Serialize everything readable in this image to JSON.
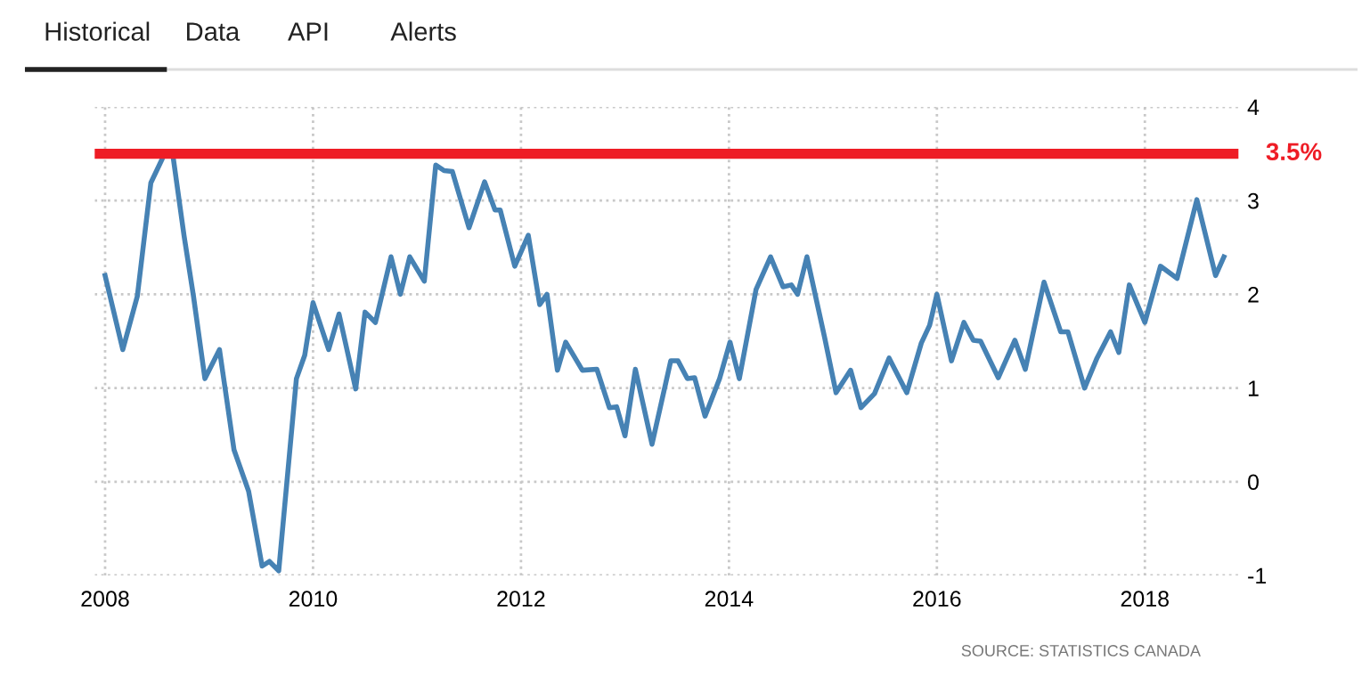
{
  "chart_data": {
    "type": "line",
    "x": [
      2008.0,
      2008.17,
      2008.31,
      2008.44,
      2008.56,
      2008.65,
      2008.76,
      2008.85,
      2008.96,
      2009.1,
      2009.24,
      2009.38,
      2009.51,
      2009.58,
      2009.67,
      2009.84,
      2009.92,
      2010.0,
      2010.15,
      2010.25,
      2010.41,
      2010.5,
      2010.6,
      2010.75,
      2010.84,
      2010.93,
      2011.07,
      2011.18,
      2011.26,
      2011.34,
      2011.5,
      2011.65,
      2011.75,
      2011.8,
      2011.94,
      2012.07,
      2012.18,
      2012.25,
      2012.35,
      2012.43,
      2012.59,
      2012.73,
      2012.85,
      2012.92,
      2013.0,
      2013.1,
      2013.26,
      2013.44,
      2013.51,
      2013.6,
      2013.67,
      2013.77,
      2013.91,
      2014.01,
      2014.1,
      2014.26,
      2014.4,
      2014.52,
      2014.6,
      2014.66,
      2014.75,
      2014.92,
      2015.03,
      2015.17,
      2015.27,
      2015.4,
      2015.54,
      2015.71,
      2015.85,
      2015.93,
      2016.0,
      2016.14,
      2016.26,
      2016.35,
      2016.42,
      2016.59,
      2016.75,
      2016.85,
      2017.03,
      2017.19,
      2017.26,
      2017.42,
      2017.54,
      2017.67,
      2017.75,
      2017.85,
      2018.0,
      2018.15,
      2018.31,
      2018.5,
      2018.68,
      2018.76
    ],
    "series": [
      {
        "color": "#4682b4",
        "values": [
          2.2,
          1.41,
          1.98,
          3.19,
          3.47,
          3.5,
          2.62,
          1.98,
          1.1,
          1.41,
          0.34,
          -0.1,
          -0.9,
          -0.85,
          -0.95,
          1.1,
          1.35,
          1.91,
          1.41,
          1.79,
          0.99,
          1.81,
          1.7,
          2.4,
          2.0,
          2.4,
          2.14,
          3.38,
          3.32,
          3.31,
          2.71,
          3.2,
          2.9,
          2.9,
          2.3,
          2.63,
          1.89,
          2.0,
          1.19,
          1.49,
          1.19,
          1.2,
          0.79,
          0.8,
          0.49,
          1.2,
          0.4,
          1.29,
          1.29,
          1.1,
          1.11,
          0.7,
          1.1,
          1.49,
          1.1,
          2.05,
          2.4,
          2.08,
          2.1,
          2.0,
          2.4,
          1.54,
          0.95,
          1.19,
          0.79,
          0.94,
          1.32,
          0.95,
          1.48,
          1.67,
          2.0,
          1.29,
          1.7,
          1.51,
          1.5,
          1.11,
          1.51,
          1.2,
          2.13,
          1.6,
          1.6,
          1.0,
          1.32,
          1.6,
          1.38,
          2.1,
          1.7,
          2.3,
          2.17,
          3.01,
          2.2,
          2.4
        ]
      }
    ],
    "xlim": [
      2007.9,
      2018.9
    ],
    "xticks": [
      2008,
      2010,
      2012,
      2014,
      2016,
      2018
    ],
    "ylim": [
      -1,
      4
    ],
    "yticks": [
      -1,
      0,
      1,
      2,
      3,
      4
    ],
    "grid": true,
    "legend": false,
    "line_style": "solid",
    "marker": "none",
    "ref_lines": [
      {
        "axis": "y",
        "value": 3.5,
        "label": "3.5%",
        "color": "#ee1c25"
      }
    ],
    "annotations": [
      "Historical",
      "Data",
      "API",
      "Alerts",
      "SOURCE: STATISTICS CANADA"
    ]
  }
}
